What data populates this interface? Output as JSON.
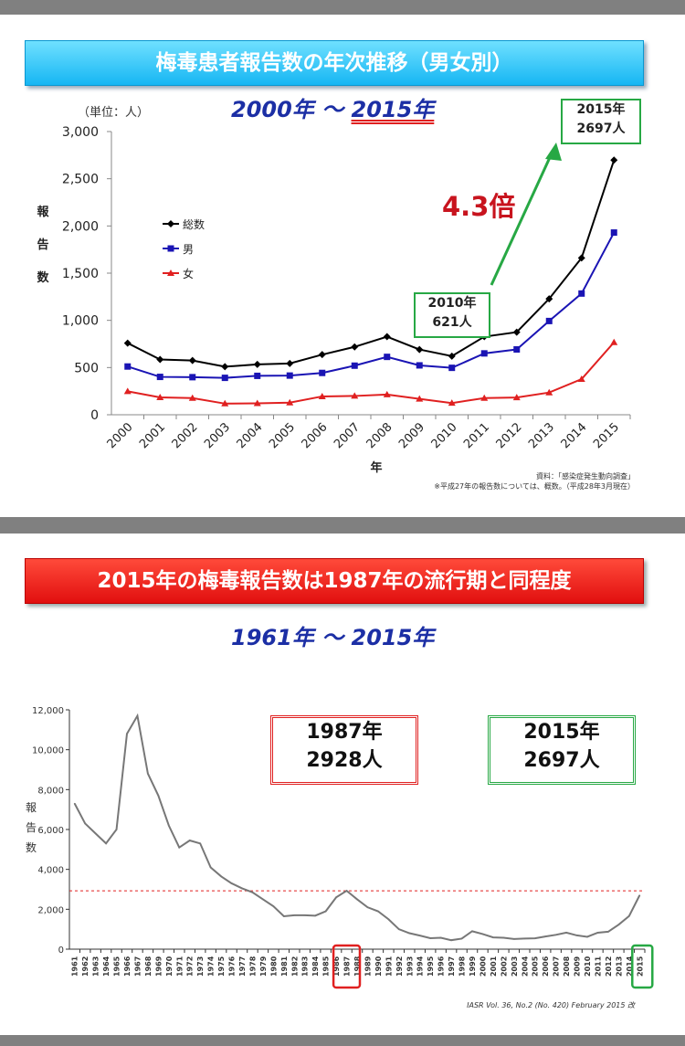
{
  "top": {
    "banner": "梅毒患者報告数の年次推移（男女別）",
    "range_start": "2000年",
    "range_sep": "〜",
    "range_end": "2015年",
    "unit": "（単位：人）",
    "note_source": "資料：「感染症発生動向調査」",
    "note_footnote": "※平成27年の報告数については、概数。（平成28年3月現在）",
    "callout_2015_line1": "2015年",
    "callout_2015_line2": "2697人",
    "callout_2010_line1": "2010年",
    "callout_2010_line2": "621人",
    "multiplier": "4.3倍"
  },
  "bottom": {
    "banner": "2015年の梅毒報告数は1987年の流行期と同程度",
    "range": "1961年 〜 2015年",
    "box1987_line1": "1987年",
    "box1987_line2": "2928人",
    "box2015_line1": "2015年",
    "box2015_line2": "2697人",
    "citation": "IASR Vol. 36, No.2 (No. 420)  February 2015 改"
  },
  "colors": {
    "total": "#000000",
    "male": "#1a14b4",
    "female": "#e02020",
    "history": "#777777",
    "reference": "#e02020",
    "accent_green": "#27a844"
  },
  "chart_data": [
    {
      "type": "line",
      "ylabel": "報告数",
      "xlabel": "年",
      "ylim": [
        0,
        3000
      ],
      "yticks": [
        "0",
        "500",
        "1,000",
        "1,500",
        "2,000",
        "2,500",
        "3,000"
      ],
      "categories": [
        "2000",
        "2001",
        "2002",
        "2003",
        "2004",
        "2005",
        "2006",
        "2007",
        "2008",
        "2009",
        "2010",
        "2011",
        "2012",
        "2013",
        "2014",
        "2015"
      ],
      "legend_position": "left",
      "series": [
        {
          "name": "総数",
          "marker": "diamond",
          "values": [
            759,
            585,
            575,
            509,
            533,
            543,
            637,
            719,
            827,
            691,
            621,
            827,
            875,
            1228,
            1661,
            2697
          ]
        },
        {
          "name": "男",
          "marker": "square",
          "values": [
            511,
            401,
            398,
            391,
            412,
            415,
            443,
            520,
            613,
            523,
            497,
            650,
            692,
            993,
            1284,
            1930
          ]
        },
        {
          "name": "女",
          "marker": "triangle",
          "values": [
            248,
            184,
            177,
            118,
            121,
            128,
            194,
            199,
            214,
            168,
            124,
            177,
            183,
            235,
            377,
            767
          ]
        }
      ]
    },
    {
      "type": "line",
      "ylabel": "報告数",
      "ylim": [
        0,
        12000
      ],
      "yticks": [
        "0",
        "2,000",
        "4,000",
        "6,000",
        "8,000",
        "10,000",
        "12,000"
      ],
      "grid": false,
      "reference_line": 2928,
      "categories": [
        "1961",
        "1962",
        "1963",
        "1964",
        "1965",
        "1966",
        "1967",
        "1968",
        "1969",
        "1970",
        "1971",
        "1972",
        "1973",
        "1974",
        "1975",
        "1976",
        "1977",
        "1978",
        "1979",
        "1980",
        "1981",
        "1982",
        "1983",
        "1984",
        "1985",
        "1986",
        "1987",
        "1988",
        "1989",
        "1990",
        "1991",
        "1992",
        "1993",
        "1994",
        "1995",
        "1996",
        "1997",
        "1998",
        "1999",
        "2000",
        "2001",
        "2002",
        "2003",
        "2004",
        "2005",
        "2006",
        "2007",
        "2008",
        "2009",
        "2010",
        "2011",
        "2012",
        "2013",
        "2014",
        "2015"
      ],
      "values": [
        7300,
        6300,
        5800,
        5300,
        6000,
        10800,
        11700,
        8800,
        7700,
        6200,
        5100,
        5450,
        5300,
        4100,
        3650,
        3300,
        3050,
        2850,
        2500,
        2150,
        1650,
        1700,
        1700,
        1680,
        1900,
        2600,
        2928,
        2500,
        2100,
        1900,
        1500,
        1000,
        800,
        680,
        550,
        570,
        450,
        530,
        900,
        760,
        590,
        575,
        509,
        533,
        543,
        637,
        719,
        827,
        691,
        621,
        827,
        875,
        1228,
        1661,
        2697
      ]
    }
  ]
}
